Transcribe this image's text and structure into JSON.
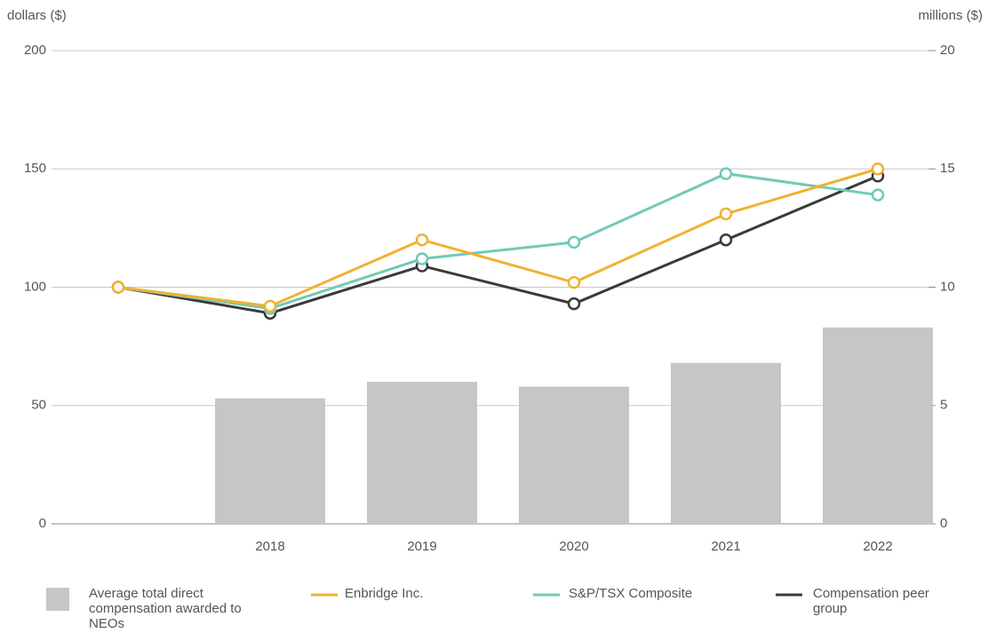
{
  "chart_data": {
    "type": "combo",
    "y_label": "dollars ($)",
    "y2_label": "millions ($)",
    "categories": [
      null,
      "2018",
      "2019",
      "2020",
      "2021",
      "2022"
    ],
    "ylim": [
      0,
      200
    ],
    "yticks": [
      0,
      50,
      100,
      150,
      200
    ],
    "y2lim": [
      0,
      20
    ],
    "y2ticks": [
      0,
      5,
      10,
      15,
      20
    ],
    "grid": true,
    "series": [
      {
        "name": "Average total direct compensation awarded to NEOs",
        "type": "bar",
        "axis": "y2",
        "color": "#c6c6c6",
        "values": [
          null,
          5.3,
          6.0,
          5.8,
          6.8,
          8.3
        ]
      },
      {
        "name": "Enbridge Inc.",
        "type": "line",
        "color": "#f0b232",
        "values": [
          100,
          92,
          120,
          102,
          131,
          150
        ]
      },
      {
        "name": "S&P/TSX Composite",
        "type": "line",
        "color": "#72c9b9",
        "values": [
          100,
          91,
          112,
          119,
          148,
          139
        ]
      },
      {
        "name": "Compensation peer group",
        "type": "line",
        "color": "#3a3a3a",
        "values": [
          100,
          89,
          109,
          93,
          120,
          147
        ]
      }
    ]
  }
}
